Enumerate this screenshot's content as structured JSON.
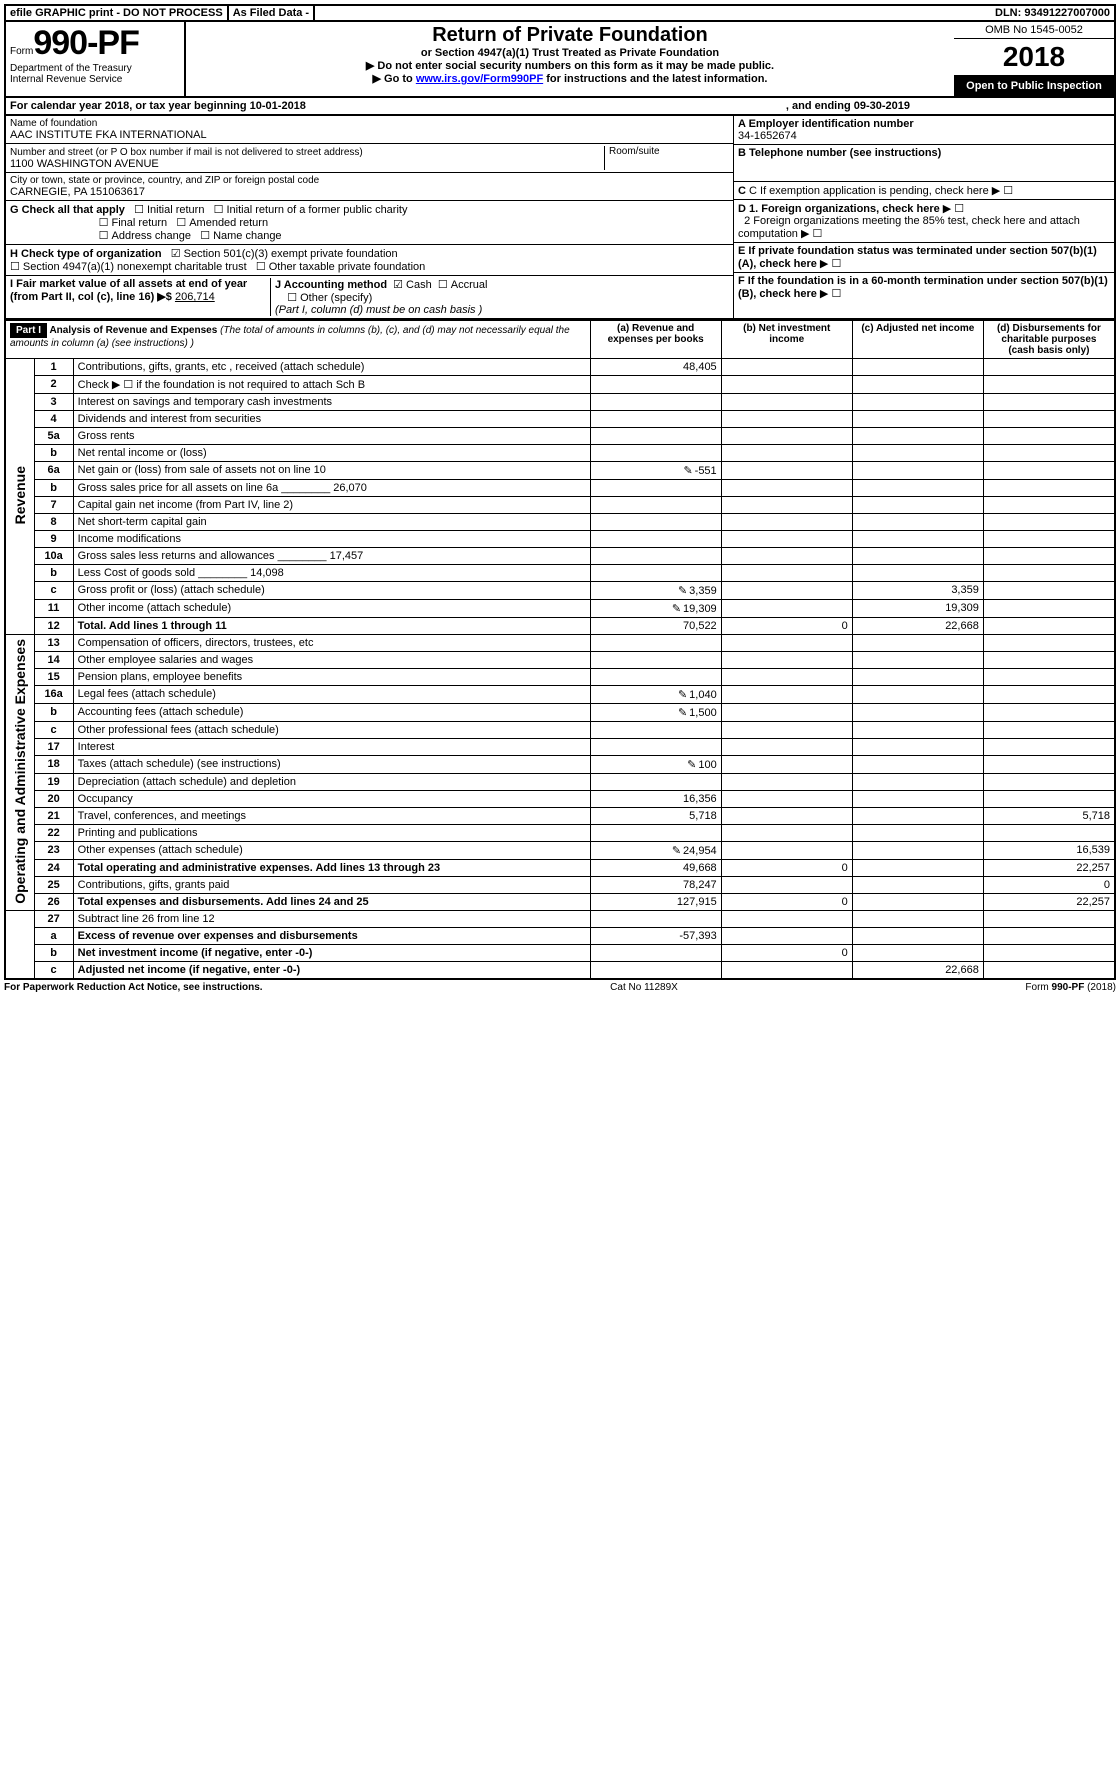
{
  "topbar": {
    "efile": "efile GRAPHIC print - DO NOT PROCESS",
    "asfiled": "As Filed Data -",
    "dln_label": "DLN:",
    "dln": "93491227007000"
  },
  "header": {
    "form_word": "Form",
    "form_num": "990-PF",
    "dept": "Department of the Treasury",
    "irs": "Internal Revenue Service",
    "title": "Return of Private Foundation",
    "subtitle": "or Section 4947(a)(1) Trust Treated as Private Foundation",
    "note1": "▶ Do not enter social security numbers on this form as it may be made public.",
    "note2_pre": "▶ Go to ",
    "link": "www.irs.gov/Form990PF",
    "note2_post": " for instructions and the latest information.",
    "omb": "OMB No 1545-0052",
    "year": "2018",
    "open": "Open to Public Inspection"
  },
  "cal": {
    "text1": "For calendar year 2018, or tax year beginning 10-01-2018",
    "text2": ", and ending 09-30-2019"
  },
  "info": {
    "name_label": "Name of foundation",
    "name": "AAC INSTITUTE FKA INTERNATIONAL",
    "addr_label": "Number and street (or P O  box number if mail is not delivered to street address)",
    "room_label": "Room/suite",
    "addr": "1100 WASHINGTON AVENUE",
    "city_label": "City or town, state or province, country, and ZIP or foreign postal code",
    "city": "CARNEGIE, PA  151063617",
    "g": "G Check all that apply",
    "g_opts": [
      "Initial return",
      "Initial return of a former public charity",
      "Final return",
      "Amended return",
      "Address change",
      "Name change"
    ],
    "h": "H Check type of organization",
    "h1": "Section 501(c)(3) exempt private foundation",
    "h2": "Section 4947(a)(1) nonexempt charitable trust",
    "h3": "Other taxable private foundation",
    "i": "I Fair market value of all assets at end of year (from Part II, col  (c), line 16) ▶$",
    "i_val": "206,714",
    "j": "J Accounting method",
    "j_opts": [
      "Cash",
      "Accrual",
      "Other (specify)"
    ],
    "j_note": "(Part I, column (d) must be on cash basis )",
    "a": "A Employer identification number",
    "a_val": "34-1652674",
    "b": "B Telephone number (see instructions)",
    "c": "C If exemption application is pending, check here",
    "d1": "D 1. Foreign organizations, check here",
    "d2": "2  Foreign organizations meeting the 85% test, check here and attach computation",
    "e": "E  If private foundation status was terminated under section 507(b)(1)(A), check here",
    "f": "F  If the foundation is in a 60-month termination under section 507(b)(1)(B), check here"
  },
  "part1": {
    "label": "Part I",
    "title": "Analysis of Revenue and Expenses",
    "title_note": "(The total of amounts in columns (b), (c), and (d) may not necessarily equal the amounts in column (a) (see instructions) )",
    "cols": [
      "(a)  Revenue and expenses per books",
      "(b)  Net investment income",
      "(c)  Adjusted net income",
      "(d)  Disbursements for charitable purposes (cash basis only)"
    ]
  },
  "sides": {
    "rev": "Revenue",
    "exp": "Operating and Administrative Expenses"
  },
  "rows": [
    {
      "n": "1",
      "t": "Contributions, gifts, grants, etc , received (attach schedule)",
      "a": "48,405"
    },
    {
      "n": "2",
      "t": "Check ▶ ☐ if the foundation is not required to attach Sch  B"
    },
    {
      "n": "3",
      "t": "Interest on savings and temporary cash investments"
    },
    {
      "n": "4",
      "t": "Dividends and interest from securities"
    },
    {
      "n": "5a",
      "t": "Gross rents"
    },
    {
      "n": "b",
      "t": "Net rental income or (loss)"
    },
    {
      "n": "6a",
      "t": "Net gain or (loss) from sale of assets not on line 10",
      "icon": true,
      "a": "-551"
    },
    {
      "n": "b",
      "t": "Gross sales price for all assets on line 6a",
      "inline": "26,070"
    },
    {
      "n": "7",
      "t": "Capital gain net income (from Part IV, line 2)"
    },
    {
      "n": "8",
      "t": "Net short-term capital gain"
    },
    {
      "n": "9",
      "t": "Income modifications"
    },
    {
      "n": "10a",
      "t": "Gross sales less returns and allowances",
      "inline": "17,457"
    },
    {
      "n": "b",
      "t": "Less  Cost of goods sold",
      "inline": "14,098"
    },
    {
      "n": "c",
      "t": "Gross profit or (loss) (attach schedule)",
      "icon": true,
      "a": "3,359",
      "c": "3,359"
    },
    {
      "n": "11",
      "t": "Other income (attach schedule)",
      "icon": true,
      "a": "19,309",
      "c": "19,309"
    },
    {
      "n": "12",
      "t": "Total. Add lines 1 through 11",
      "bold": true,
      "a": "70,522",
      "b": "0",
      "c": "22,668"
    }
  ],
  "rows2": [
    {
      "n": "13",
      "t": "Compensation of officers, directors, trustees, etc"
    },
    {
      "n": "14",
      "t": "Other employee salaries and wages"
    },
    {
      "n": "15",
      "t": "Pension plans, employee benefits"
    },
    {
      "n": "16a",
      "t": "Legal fees (attach schedule)",
      "icon": true,
      "a": "1,040"
    },
    {
      "n": "b",
      "t": "Accounting fees (attach schedule)",
      "icon": true,
      "a": "1,500"
    },
    {
      "n": "c",
      "t": "Other professional fees (attach schedule)"
    },
    {
      "n": "17",
      "t": "Interest"
    },
    {
      "n": "18",
      "t": "Taxes (attach schedule) (see instructions)",
      "icon": true,
      "a": "100"
    },
    {
      "n": "19",
      "t": "Depreciation (attach schedule) and depletion"
    },
    {
      "n": "20",
      "t": "Occupancy",
      "a": "16,356"
    },
    {
      "n": "21",
      "t": "Travel, conferences, and meetings",
      "a": "5,718",
      "d": "5,718"
    },
    {
      "n": "22",
      "t": "Printing and publications"
    },
    {
      "n": "23",
      "t": "Other expenses (attach schedule)",
      "icon": true,
      "a": "24,954",
      "d": "16,539"
    },
    {
      "n": "24",
      "t": "Total operating and administrative expenses. Add lines 13 through 23",
      "bold": true,
      "a": "49,668",
      "b": "0",
      "d": "22,257"
    },
    {
      "n": "25",
      "t": "Contributions, gifts, grants paid",
      "a": "78,247",
      "d": "0"
    },
    {
      "n": "26",
      "t": "Total expenses and disbursements. Add lines 24 and 25",
      "bold": true,
      "a": "127,915",
      "b": "0",
      "d": "22,257"
    }
  ],
  "rows3": [
    {
      "n": "27",
      "t": "Subtract line 26 from line 12"
    },
    {
      "n": "a",
      "t": "Excess of revenue over expenses and disbursements",
      "bold": true,
      "a": "-57,393"
    },
    {
      "n": "b",
      "t": "Net investment income (if negative, enter -0-)",
      "bold": true,
      "b": "0"
    },
    {
      "n": "c",
      "t": "Adjusted net income (if negative, enter -0-)",
      "bold": true,
      "c": "22,668"
    }
  ],
  "foot": {
    "left": "For Paperwork Reduction Act Notice, see instructions.",
    "mid": "Cat  No  11289X",
    "right": "Form 990-PF (2018)"
  }
}
